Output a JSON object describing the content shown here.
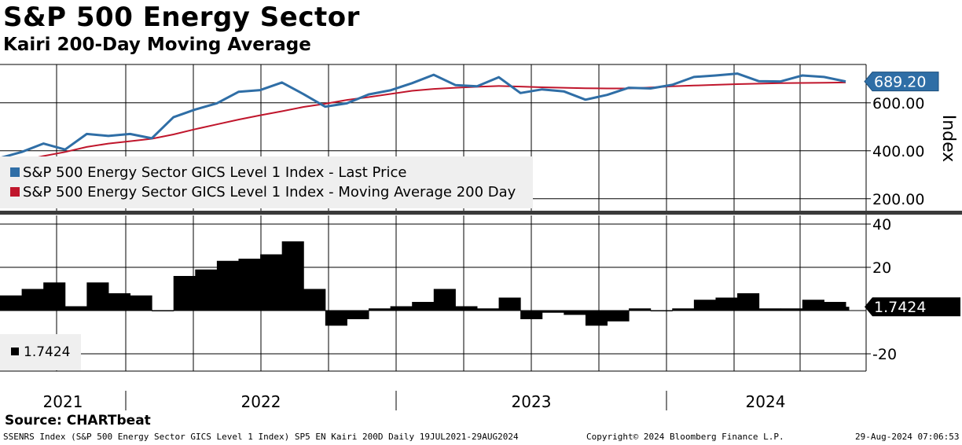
{
  "title": "S&P 500 Energy Sector",
  "subtitle": "Kairi 200-Day Moving Average",
  "source": "Source: CHARTbeat",
  "footer": {
    "left": "SSENRS Index (S&P 500 Energy Sector GICS Level 1 Index) SP5 EN Kairi 200D  Daily 19JUL2021-29AUG2024",
    "center": "Copyright© 2024 Bloomberg Finance L.P.",
    "right": "29-Aug-2024 07:06:53"
  },
  "colors": {
    "price": "#2f6ea6",
    "ma": "#c0162c",
    "kairi": "#000000",
    "last_label": "#2f6ea6"
  },
  "chart_data": [
    {
      "type": "line",
      "panel": "upper",
      "ylabel": "Index",
      "ylim": [
        150,
        760
      ],
      "yticks": [
        200,
        400,
        600
      ],
      "ytick_labels": [
        "200.00",
        "400.00",
        "600.00"
      ],
      "last_value_label": "689.20",
      "x_labels": [
        "2021",
        "2022",
        "2023",
        "2024"
      ],
      "legend": [
        "S&P 500 Energy Sector GICS Level 1 Index - Last Price",
        "S&P 500 Energy Sector GICS Level 1 Index - Moving Average 200 Day"
      ],
      "x": [
        0,
        4,
        8,
        12,
        16,
        20,
        24,
        28,
        32,
        36,
        40,
        44,
        48,
        52,
        56,
        60,
        64,
        68,
        72,
        76,
        80,
        84,
        88,
        92,
        96,
        100,
        104,
        108,
        112,
        116,
        120,
        124,
        128,
        132,
        136,
        140,
        144,
        148,
        152,
        156
      ],
      "series": [
        {
          "name": "Last Price",
          "values": [
            370,
            395,
            430,
            405,
            470,
            462,
            470,
            452,
            540,
            572,
            598,
            646,
            653,
            685,
            636,
            584,
            598,
            635,
            652,
            682,
            717,
            674,
            669,
            707,
            641,
            656,
            648,
            613,
            633,
            663,
            660,
            675,
            708,
            714,
            722,
            690,
            689,
            714,
            708,
            689
          ]
        },
        {
          "name": "Moving Average 200 Day",
          "values": [
            345,
            358,
            378,
            395,
            416,
            430,
            440,
            450,
            468,
            490,
            510,
            530,
            548,
            565,
            583,
            596,
            612,
            624,
            637,
            650,
            658,
            663,
            667,
            670,
            668,
            665,
            663,
            661,
            660,
            660,
            664,
            669,
            672,
            675,
            678,
            680,
            682,
            683,
            684,
            685
          ]
        }
      ]
    },
    {
      "type": "bar",
      "panel": "lower",
      "title": "Kairi",
      "ylim": [
        -28,
        44
      ],
      "yticks": [
        -20,
        20,
        40
      ],
      "ytick_labels": [
        "-20",
        "20",
        "40"
      ],
      "last_value_label": "1.7424",
      "legend_value": "1.7424",
      "x": [
        0,
        4,
        8,
        12,
        16,
        20,
        24,
        28,
        32,
        36,
        40,
        44,
        48,
        52,
        56,
        60,
        64,
        68,
        72,
        76,
        80,
        84,
        88,
        92,
        96,
        100,
        104,
        108,
        112,
        116,
        120,
        124,
        128,
        132,
        136,
        140,
        144,
        148,
        152,
        156
      ],
      "values": [
        7,
        10,
        13,
        2,
        13,
        8,
        7,
        0,
        16,
        19,
        23,
        24,
        26,
        32,
        10,
        -7,
        -4,
        1,
        2,
        4,
        10,
        2,
        1,
        6,
        -4,
        -1,
        -2,
        -7,
        -5,
        1,
        0,
        1,
        5,
        6,
        8,
        1,
        1,
        5,
        4,
        1.7424
      ]
    }
  ]
}
